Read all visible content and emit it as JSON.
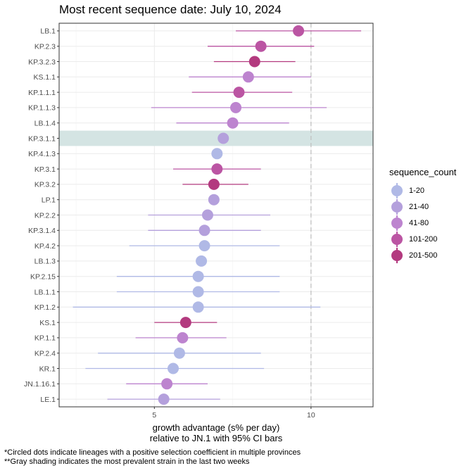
{
  "chart_data": {
    "type": "scatter",
    "title": "Most recent sequence date: July 10, 2024",
    "xlabel": "growth advantage (s% per day)",
    "xlabel_line2": "relative to  JN.1  with 95% CI bars",
    "xlim": [
      1.96,
      11.98
    ],
    "x_ticks": [
      5,
      10
    ],
    "reference_line_x": 10,
    "highlight_lineage": "KP.3.1.1",
    "legend": {
      "title": "sequence_count",
      "position": "right",
      "items": [
        {
          "label": "1-20",
          "color": "#b0b9e6"
        },
        {
          "label": "21-40",
          "color": "#b4a0dc"
        },
        {
          "label": "41-80",
          "color": "#bd84cf"
        },
        {
          "label": "101-200",
          "color": "#bb55a3"
        },
        {
          "label": "201-500",
          "color": "#b33a7f"
        }
      ]
    },
    "lineages": [
      {
        "name": "LB.1",
        "estimate": 9.6,
        "lower": 7.6,
        "upper": 11.6,
        "count_group": "101-200"
      },
      {
        "name": "KP.2.3",
        "estimate": 8.4,
        "lower": 6.7,
        "upper": 10.1,
        "count_group": "101-200"
      },
      {
        "name": "KP.3.2.3",
        "estimate": 8.2,
        "lower": 6.9,
        "upper": 9.5,
        "count_group": "201-500"
      },
      {
        "name": "KS.1.1",
        "estimate": 8.0,
        "lower": 6.1,
        "upper": 10.0,
        "count_group": "41-80"
      },
      {
        "name": "KP.1.1.1",
        "estimate": 7.7,
        "lower": 6.2,
        "upper": 9.4,
        "count_group": "101-200"
      },
      {
        "name": "KP.1.1.3",
        "estimate": 7.6,
        "lower": 4.9,
        "upper": 10.5,
        "count_group": "41-80"
      },
      {
        "name": "LB.1.4",
        "estimate": 7.5,
        "lower": 5.7,
        "upper": 9.3,
        "count_group": "41-80"
      },
      {
        "name": "KP.3.1.1",
        "estimate": 7.2,
        "lower": null,
        "upper": null,
        "count_group": "21-40"
      },
      {
        "name": "KP.4.1.3",
        "estimate": 7.0,
        "lower": null,
        "upper": null,
        "count_group": "1-20"
      },
      {
        "name": "KP.3.1",
        "estimate": 7.0,
        "lower": 5.6,
        "upper": 8.4,
        "count_group": "101-200"
      },
      {
        "name": "KP.3.2",
        "estimate": 6.9,
        "lower": 5.9,
        "upper": 8.0,
        "count_group": "201-500"
      },
      {
        "name": "LP.1",
        "estimate": 6.9,
        "lower": null,
        "upper": null,
        "count_group": "21-40"
      },
      {
        "name": "KP.2.2",
        "estimate": 6.7,
        "lower": 4.8,
        "upper": 8.7,
        "count_group": "21-40"
      },
      {
        "name": "KP.3.1.4",
        "estimate": 6.6,
        "lower": 4.8,
        "upper": 8.4,
        "count_group": "21-40"
      },
      {
        "name": "KP.4.2",
        "estimate": 6.6,
        "lower": 4.2,
        "upper": 9.0,
        "count_group": "1-20"
      },
      {
        "name": "LB.1.3",
        "estimate": 6.5,
        "lower": null,
        "upper": null,
        "count_group": "1-20"
      },
      {
        "name": "KP.2.15",
        "estimate": 6.4,
        "lower": 3.8,
        "upper": 9.0,
        "count_group": "1-20"
      },
      {
        "name": "LB.1.1",
        "estimate": 6.4,
        "lower": 3.8,
        "upper": 9.0,
        "count_group": "1-20"
      },
      {
        "name": "KP.1.2",
        "estimate": 6.4,
        "lower": 2.4,
        "upper": 10.3,
        "count_group": "1-20"
      },
      {
        "name": "KS.1",
        "estimate": 6.0,
        "lower": 5.0,
        "upper": 7.0,
        "count_group": "201-500"
      },
      {
        "name": "KP.1.1",
        "estimate": 5.9,
        "lower": 4.4,
        "upper": 7.3,
        "count_group": "41-80"
      },
      {
        "name": "KP.2.4",
        "estimate": 5.8,
        "lower": 3.2,
        "upper": 8.4,
        "count_group": "1-20"
      },
      {
        "name": "KR.1",
        "estimate": 5.6,
        "lower": 2.8,
        "upper": 8.5,
        "count_group": "1-20"
      },
      {
        "name": "JN.1.16.1",
        "estimate": 5.4,
        "lower": 4.1,
        "upper": 6.7,
        "count_group": "41-80"
      },
      {
        "name": "LE.1",
        "estimate": 5.3,
        "lower": 3.5,
        "upper": 7.1,
        "count_group": "21-40"
      }
    ]
  },
  "captions": [
    "*Circled dots indicate lineages with a positive selection coefficient in multiple provinces",
    "**Gray shading indicates the most prevalent strain in the last two weeks"
  ]
}
